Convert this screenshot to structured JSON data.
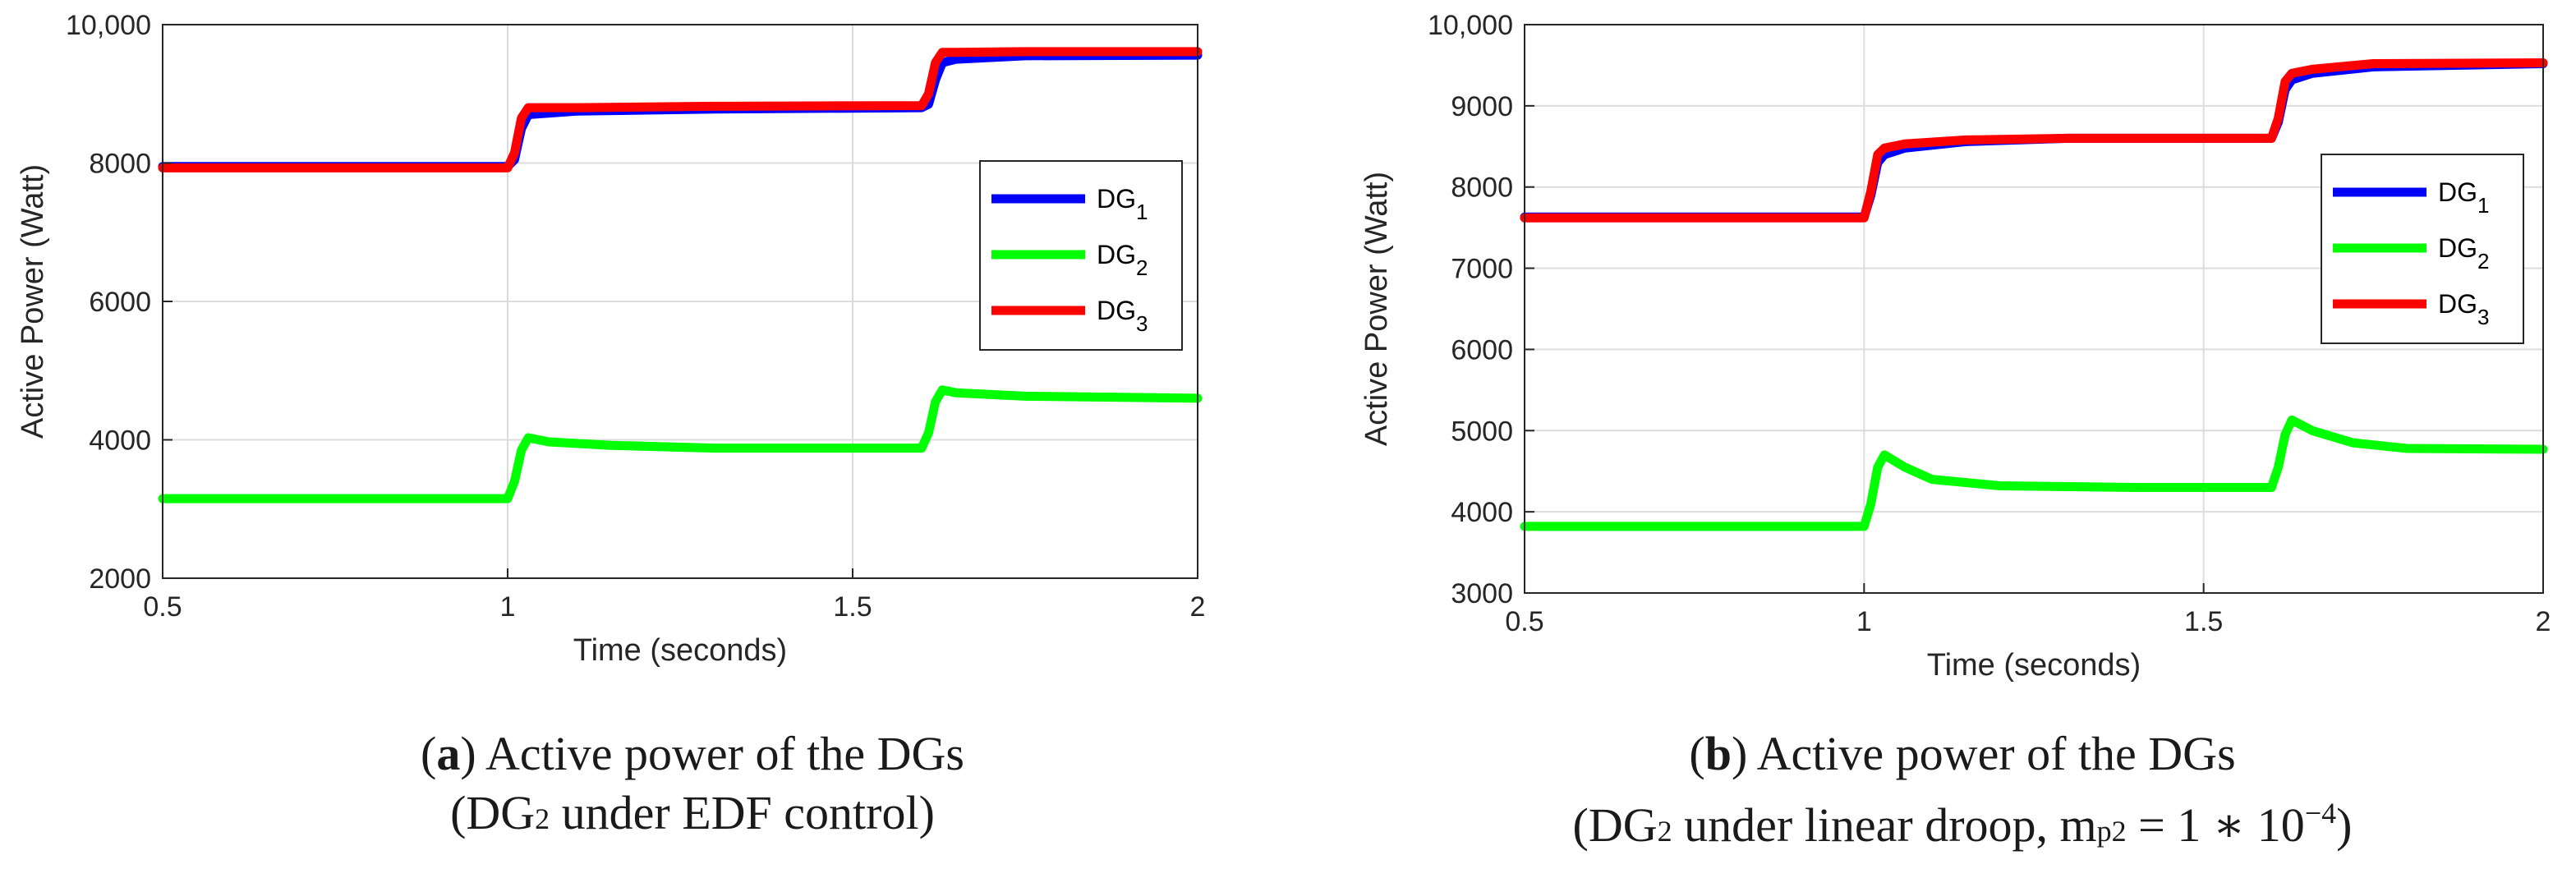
{
  "colors": {
    "DG1": "#0000ff",
    "DG2": "#00ff00",
    "DG3": "#ff0000",
    "grid": "#dcdcdc",
    "axis": "#262626"
  },
  "chart_data": [
    {
      "type": "line",
      "xlabel": "Time (seconds)",
      "ylabel": "Active Power (Watt)",
      "xlim": [
        0.5,
        2
      ],
      "ylim": [
        2000,
        10000
      ],
      "xticks": [
        0.5,
        1,
        1.5,
        2
      ],
      "xtick_labels": [
        "0.5",
        "1",
        "1.5",
        "2"
      ],
      "yticks": [
        2000,
        4000,
        6000,
        8000,
        10000
      ],
      "ytick_labels": [
        "2000",
        "4000",
        "6000",
        "8000",
        "10,000"
      ],
      "grid": true,
      "legend_position": "right",
      "series": [
        {
          "name": "DG",
          "subscript": "1",
          "color_key": "DG1",
          "x": [
            0.5,
            1.0,
            1.01,
            1.02,
            1.03,
            1.1,
            1.3,
            1.6,
            1.61,
            1.62,
            1.63,
            1.65,
            1.75,
            2.0
          ],
          "y": [
            7950,
            7950,
            8050,
            8500,
            8700,
            8750,
            8780,
            8800,
            8850,
            9200,
            9450,
            9500,
            9550,
            9560
          ]
        },
        {
          "name": "DG",
          "subscript": "2",
          "color_key": "DG2",
          "x": [
            0.5,
            1.0,
            1.01,
            1.02,
            1.03,
            1.06,
            1.15,
            1.3,
            1.6,
            1.61,
            1.62,
            1.63,
            1.65,
            1.75,
            2.0
          ],
          "y": [
            3150,
            3150,
            3400,
            3850,
            4030,
            3970,
            3920,
            3880,
            3880,
            4100,
            4550,
            4720,
            4680,
            4630,
            4600
          ]
        },
        {
          "name": "DG",
          "subscript": "3",
          "color_key": "DG3",
          "x": [
            0.5,
            1.0,
            1.01,
            1.02,
            1.03,
            1.1,
            1.3,
            1.6,
            1.61,
            1.62,
            1.63,
            1.65,
            1.75,
            2.0
          ],
          "y": [
            7930,
            7930,
            8150,
            8650,
            8800,
            8800,
            8820,
            8830,
            9000,
            9450,
            9600,
            9600,
            9610,
            9610
          ]
        }
      ]
    },
    {
      "type": "line",
      "xlabel": "Time (seconds)",
      "ylabel": "Active Power (Watt)",
      "xlim": [
        0.5,
        2
      ],
      "ylim": [
        3000,
        10000
      ],
      "xticks": [
        0.5,
        1,
        1.5,
        2
      ],
      "xtick_labels": [
        "0.5",
        "1",
        "1.5",
        "2"
      ],
      "yticks": [
        3000,
        4000,
        5000,
        6000,
        7000,
        8000,
        9000,
        10000
      ],
      "ytick_labels": [
        "3000",
        "4000",
        "5000",
        "6000",
        "7000",
        "8000",
        "9000",
        "10,000"
      ],
      "grid": true,
      "legend_position": "right",
      "series": [
        {
          "name": "DG",
          "subscript": "1",
          "color_key": "DG1",
          "x": [
            0.5,
            1.0,
            1.01,
            1.02,
            1.03,
            1.06,
            1.15,
            1.3,
            1.6,
            1.61,
            1.62,
            1.63,
            1.66,
            1.75,
            2.0
          ],
          "y": [
            7630,
            7630,
            7900,
            8300,
            8400,
            8480,
            8560,
            8600,
            8600,
            8800,
            9200,
            9320,
            9400,
            9480,
            9520
          ]
        },
        {
          "name": "DG",
          "subscript": "2",
          "color_key": "DG2",
          "x": [
            0.5,
            1.0,
            1.01,
            1.02,
            1.03,
            1.06,
            1.1,
            1.2,
            1.4,
            1.6,
            1.61,
            1.62,
            1.63,
            1.66,
            1.72,
            1.8,
            2.0
          ],
          "y": [
            3820,
            3820,
            4100,
            4550,
            4700,
            4550,
            4400,
            4320,
            4300,
            4300,
            4550,
            4950,
            5130,
            5000,
            4850,
            4780,
            4770
          ]
        },
        {
          "name": "DG",
          "subscript": "3",
          "color_key": "DG3",
          "x": [
            0.5,
            1.0,
            1.01,
            1.02,
            1.03,
            1.06,
            1.15,
            1.3,
            1.6,
            1.61,
            1.62,
            1.63,
            1.66,
            1.75,
            2.0
          ],
          "y": [
            7620,
            7620,
            7950,
            8400,
            8480,
            8530,
            8580,
            8600,
            8600,
            8850,
            9300,
            9400,
            9450,
            9520,
            9530
          ]
        }
      ]
    }
  ],
  "captions": [
    {
      "label": "a",
      "line1": "Active power of the DGs",
      "l2_pre": "(DG",
      "l2_sub": "2",
      "l2_post": " under EDF control)",
      "l2_mp": "",
      "l2_mp_sub": "",
      "l2_eq": "",
      "l2_sup": "",
      "l2_end": ""
    },
    {
      "label": "b",
      "line1": "Active power of the DGs",
      "l2_pre": "(DG",
      "l2_sub": "2",
      "l2_post": " under linear droop, ",
      "l2_mp": "m",
      "l2_mp_sub": "p2",
      "l2_eq": " = 1 ∗ 10",
      "l2_sup": "−4",
      "l2_end": ")"
    }
  ]
}
